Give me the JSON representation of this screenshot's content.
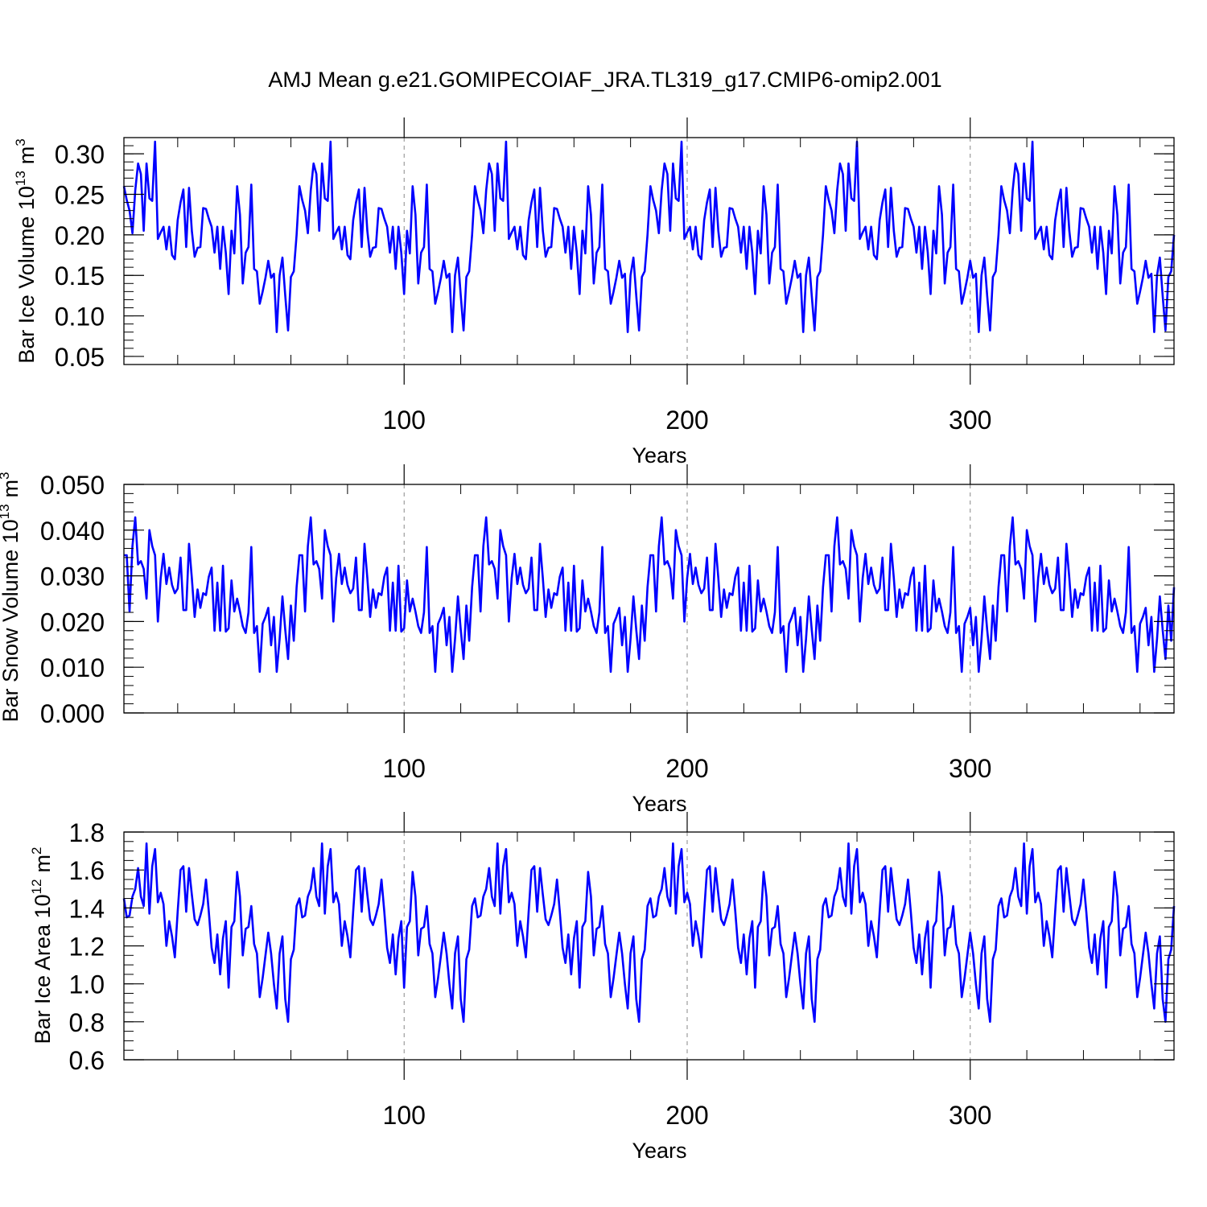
{
  "figure_title": "AMJ Mean g.e21.GOMIPECOIAF_JRA.TL319_g17.CMIP6-omip2.001",
  "chart_data": [
    {
      "type": "line",
      "ylabel_main": "Bar Ice Volume 10",
      "ylabel_exp": "13",
      "ylabel_unit": "m",
      "ylabel_unit_exp": "3",
      "xlabel": "Years",
      "xlim": [
        1,
        372
      ],
      "ylim": [
        0.04,
        0.32
      ],
      "x_ticks": [
        100,
        200,
        300
      ],
      "x_tick_labels": [
        "100",
        "200",
        "300"
      ],
      "y_ticks": [
        0.05,
        0.1,
        0.15,
        0.2,
        0.25,
        0.3
      ],
      "y_tick_labels": [
        "0.05",
        "0.10",
        "0.15",
        "0.20",
        "0.25",
        "0.30"
      ],
      "y_minor_step": 0.01,
      "x_minor_step": 20,
      "color": "#0000ff",
      "cycle_length": 62,
      "x_start": 1,
      "n_points": 372,
      "cycle_values": [
        0.26,
        0.243,
        0.23,
        0.202,
        0.255,
        0.288,
        0.275,
        0.205,
        0.288,
        0.245,
        0.242,
        0.315,
        0.195,
        0.203,
        0.21,
        0.182,
        0.21,
        0.175,
        0.17,
        0.218,
        0.24,
        0.256,
        0.185,
        0.258,
        0.205,
        0.173,
        0.184,
        0.185,
        0.233,
        0.232,
        0.22,
        0.21,
        0.178,
        0.21,
        0.158,
        0.21,
        0.178,
        0.127,
        0.205,
        0.177,
        0.26,
        0.225,
        0.14,
        0.178,
        0.185,
        0.262,
        0.158,
        0.155,
        0.115,
        0.13,
        0.147,
        0.168,
        0.147,
        0.152,
        0.08,
        0.15,
        0.172,
        0.125,
        0.082,
        0.148,
        0.155,
        0.2
      ]
    },
    {
      "type": "line",
      "ylabel_main": "Bar Snow Volume 10",
      "ylabel_exp": "13",
      "ylabel_unit": "m",
      "ylabel_unit_exp": "3",
      "xlabel": "Years",
      "xlim": [
        1,
        372
      ],
      "ylim": [
        0.0,
        0.05
      ],
      "x_ticks": [
        100,
        200,
        300
      ],
      "x_tick_labels": [
        "100",
        "200",
        "300"
      ],
      "y_ticks": [
        0.0,
        0.01,
        0.02,
        0.03,
        0.04,
        0.05
      ],
      "y_tick_labels": [
        "0.000",
        "0.010",
        "0.020",
        "0.030",
        "0.040",
        "0.050"
      ],
      "y_minor_step": 0.002,
      "x_minor_step": 20,
      "color": "#0000ff",
      "cycle_length": 62,
      "x_start": 1,
      "n_points": 372,
      "cycle_values": [
        0.0345,
        0.0345,
        0.0222,
        0.0365,
        0.0428,
        0.0325,
        0.0332,
        0.0315,
        0.025,
        0.04,
        0.0365,
        0.0345,
        0.02,
        0.0295,
        0.0348,
        0.0282,
        0.0318,
        0.028,
        0.0262,
        0.0272,
        0.034,
        0.0225,
        0.0225,
        0.037,
        0.0295,
        0.021,
        0.027,
        0.023,
        0.0262,
        0.0258,
        0.0298,
        0.0318,
        0.018,
        0.0285,
        0.018,
        0.0322,
        0.0178,
        0.0185,
        0.029,
        0.0222,
        0.025,
        0.0222,
        0.019,
        0.0175,
        0.022,
        0.0363,
        0.0175,
        0.019,
        0.009,
        0.0195,
        0.021,
        0.023,
        0.0148,
        0.021,
        0.009,
        0.0162,
        0.0255,
        0.0182,
        0.0118,
        0.0235,
        0.0158,
        0.0275
      ]
    },
    {
      "type": "line",
      "ylabel_main": "Bar Ice Area 10",
      "ylabel_exp": "12",
      "ylabel_unit": "m",
      "ylabel_unit_exp": "2",
      "xlabel": "Years",
      "xlim": [
        1,
        372
      ],
      "ylim": [
        0.6,
        1.8
      ],
      "x_ticks": [
        100,
        200,
        300
      ],
      "x_tick_labels": [
        "100",
        "200",
        "300"
      ],
      "y_ticks": [
        0.6,
        0.8,
        1.0,
        1.2,
        1.4,
        1.6,
        1.8
      ],
      "y_tick_labels": [
        "0.6",
        "0.8",
        "1.0",
        "1.2",
        "1.4",
        "1.6",
        "1.8"
      ],
      "y_minor_step": 0.05,
      "x_minor_step": 20,
      "color": "#0000ff",
      "cycle_length": 62,
      "x_start": 1,
      "n_points": 372,
      "cycle_values": [
        1.45,
        1.35,
        1.36,
        1.46,
        1.5,
        1.61,
        1.46,
        1.41,
        1.74,
        1.37,
        1.62,
        1.71,
        1.43,
        1.48,
        1.42,
        1.2,
        1.33,
        1.25,
        1.14,
        1.38,
        1.6,
        1.62,
        1.38,
        1.61,
        1.47,
        1.34,
        1.31,
        1.36,
        1.42,
        1.55,
        1.38,
        1.19,
        1.11,
        1.26,
        1.05,
        1.24,
        1.33,
        0.98,
        1.3,
        1.33,
        1.59,
        1.46,
        1.15,
        1.29,
        1.3,
        1.41,
        1.21,
        1.16,
        0.93,
        1.03,
        1.15,
        1.27,
        1.16,
        1.0,
        0.87,
        1.16,
        1.25,
        0.92,
        0.8,
        1.13,
        1.18,
        1.41
      ]
    }
  ]
}
